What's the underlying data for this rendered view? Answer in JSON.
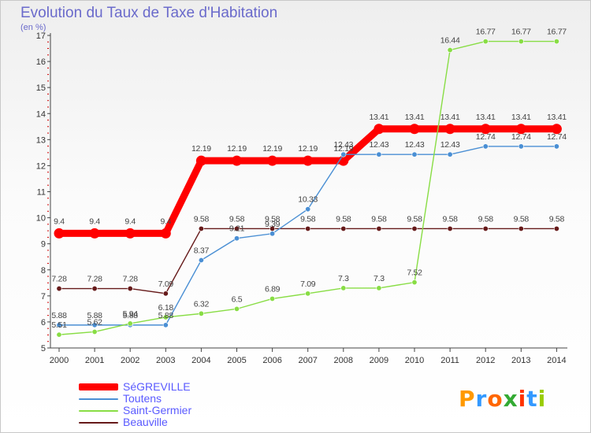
{
  "title": "Evolution du Taux de Taxe d'Habitation",
  "unit_label": "(en %)",
  "logo_text": "Proxiti",
  "chart_data": {
    "type": "line",
    "title": "Evolution du Taux de Taxe d'Habitation",
    "ylabel": "(en %)",
    "xlabel": "",
    "ylim": [
      5,
      17
    ],
    "yticks": [
      5,
      6,
      7,
      8,
      9,
      10,
      11,
      12,
      13,
      14,
      15,
      16,
      17
    ],
    "grid": false,
    "legend": "bottom-left",
    "x": [
      "2000",
      "2001",
      "2002",
      "2003",
      "2004",
      "2005",
      "2006",
      "2007",
      "2008",
      "2009",
      "2010",
      "2011",
      "2012",
      "2013",
      "2014"
    ],
    "series": [
      {
        "name": "SéGREVILLE",
        "color": "#ff0000",
        "values": [
          9.4,
          9.4,
          9.4,
          9.4,
          12.19,
          12.19,
          12.19,
          12.19,
          12.19,
          13.41,
          13.41,
          13.41,
          13.41,
          13.41,
          13.41
        ],
        "labels": [
          "9.4",
          "9.4",
          "9.4",
          "9.4",
          "12.19",
          "12.19",
          "12.19",
          "12.19",
          "12.19",
          "13.41",
          "13.41",
          "13.41",
          "13.41",
          "13.41",
          "13.41"
        ]
      },
      {
        "name": "Toutens",
        "color": "#4a8fd4",
        "values": [
          5.88,
          5.88,
          5.88,
          5.88,
          8.37,
          9.21,
          9.39,
          10.33,
          12.43,
          12.43,
          12.43,
          12.43,
          12.74,
          12.74,
          12.74
        ],
        "labels": [
          "5.88",
          "5.88",
          "5.88",
          "5.88",
          "8.37",
          "9.21",
          "9.39",
          "10.33",
          "12.43",
          "12.43",
          "12.43",
          "12.43",
          "12.74",
          "12.74",
          "12.74"
        ]
      },
      {
        "name": "Saint-Germier",
        "color": "#88dd44",
        "values": [
          5.51,
          5.62,
          5.94,
          6.18,
          6.32,
          6.5,
          6.89,
          7.09,
          7.3,
          7.3,
          7.52,
          16.44,
          16.77,
          16.77,
          16.77
        ],
        "labels": [
          "5.51",
          "5.62",
          "5.94",
          "6.18",
          "6.32",
          "6.5",
          "6.89",
          "7.09",
          "7.3",
          "7.3",
          "7.52",
          "16.44",
          "16.77",
          "16.77",
          "16.77"
        ]
      },
      {
        "name": "Beauville",
        "color": "#661a1a",
        "values": [
          7.28,
          7.28,
          7.28,
          7.09,
          9.58,
          9.58,
          9.58,
          9.58,
          9.58,
          9.58,
          9.58,
          9.58,
          9.58,
          9.58,
          9.58
        ],
        "labels": [
          "7.28",
          "7.28",
          "7.28",
          "7.09",
          "9.58",
          "9.58",
          "9.58",
          "9.58",
          "9.58",
          "9.58",
          "9.58",
          "9.58",
          "9.58",
          "9.58",
          "9.58"
        ]
      }
    ]
  }
}
